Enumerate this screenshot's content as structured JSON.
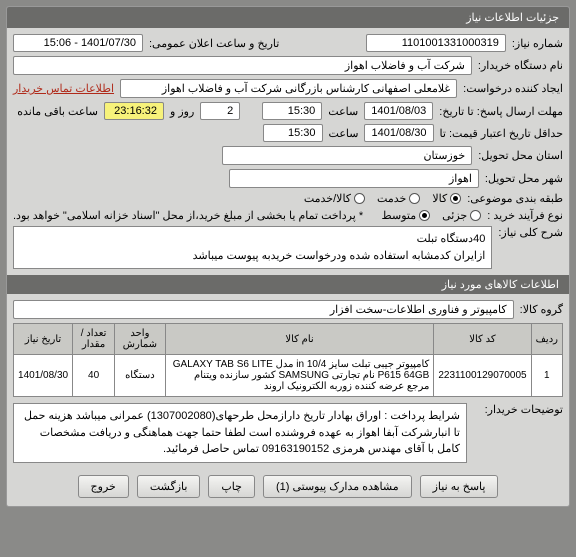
{
  "header": {
    "title": "جزئیات اطلاعات نیاز"
  },
  "fields": {
    "need_no_label": "شماره نیاز:",
    "need_no": "1101001331000319",
    "announce_label": "تاریخ و ساعت اعلان عمومی:",
    "announce": "1401/07/30 - 15:06",
    "org_label": "نام دستگاه خریدار:",
    "org": "شرکت آب و فاضلاب اهواز",
    "creator_label": "ایجاد کننده درخواست:",
    "creator": "غلامعلی اصفهانی کارشناس بازرگانی شرکت آب و فاضلاب اهواز",
    "contact_link": "اطلاعات تماس خریدار",
    "deadline_label": "مهلت ارسال پاسخ: تا تاریخ:",
    "deadline_date": "1401/08/03",
    "time_label": "ساعت",
    "deadline_time": "15:30",
    "remain_days": "2",
    "remain_days_label": "روز و",
    "remain_time": "23:16:32",
    "remain_suffix": "ساعت باقی مانده",
    "valid_label": "حداقل تاریخ اعتبار قیمت: تا",
    "valid_date": "1401/08/30",
    "valid_time": "15:30",
    "province_label": "استان محل تحویل:",
    "province": "خوزستان",
    "city_label": "شهر محل تحویل:",
    "city": "اهواز",
    "class_label": "طبقه بندی موضوعی:",
    "class_opts": {
      "a": "کالا",
      "b": "خدمت",
      "c": "کالا/خدمت"
    },
    "buy_type_label": "نوع فرآیند خرید :",
    "buy_opts": {
      "a": "جزئی",
      "b": "متوسط",
      "c": ""
    },
    "split_note": "* پرداخت تمام یا بخشی از مبلغ خرید،از محل \"اسناد خزانه اسلامی\" خواهد بود.",
    "summary_label": "شرح کلی نیاز:",
    "summary": "40دستگاه تبلت\nازایران کدمشابه استفاده شده ودرخواست خریدبه پیوست میباشد"
  },
  "items_header": "اطلاعات کالاهای مورد نیاز",
  "group_label": "گروه کالا:",
  "group_value": "کامپیوتر و فناوری اطلاعات-سخت افزار",
  "table": {
    "cols": [
      "ردیف",
      "کد کالا",
      "نام کالا",
      "واحد شمارش",
      "تعداد / مقدار",
      "تاریخ نیاز"
    ],
    "rows": [
      [
        "1",
        "2231100129070005",
        "کامپیوتر جیبی تبلت سایز 10/4 in مدل GALAXY TAB S6 LITE P615 64GB نام تجارتی SAMSUNG کشور سازنده ویتنام مرجع عرضه کننده زوربه الکترونیک اروند",
        "دستگاه",
        "40",
        "1401/08/30"
      ]
    ]
  },
  "cond_label": "شرایط پرداخت :",
  "cond_text": "اوراق بهادار تاریخ دارازمحل طرحهای(1307002080) عمرانی میباشد هزینه حمل تا انبارشرکت آبفا اهواز به عهده فروشنده است لطفا حتما جهت هماهنگی و دریافت مشخصات کامل با آقای مهندس هرمزی 09163190152 تماس حاصل فرمائید.",
  "buyer_note_label": "توضیحات خریدار:",
  "buttons": {
    "reply": "پاسخ به نیاز",
    "attach": "مشاهده مدارک پیوستی (1)",
    "print": "چاپ",
    "back": "بازگشت",
    "exit": "خروج"
  }
}
